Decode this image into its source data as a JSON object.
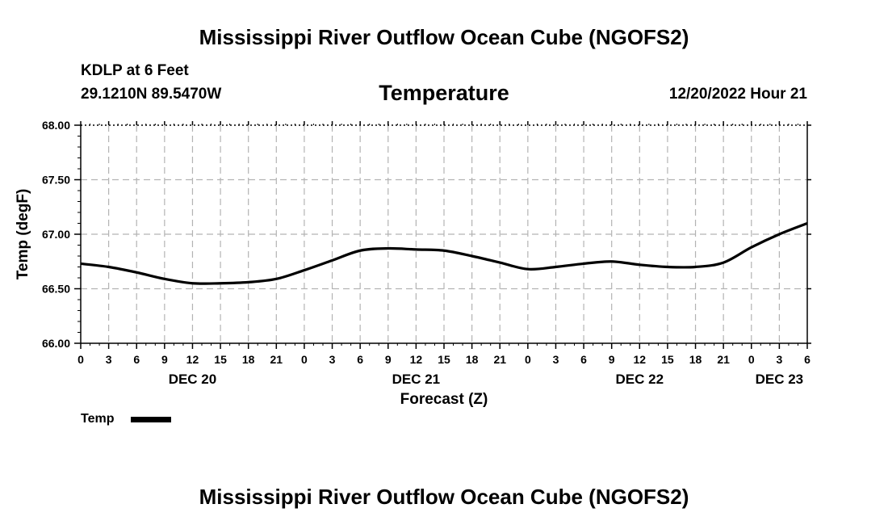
{
  "page": {
    "title": "Mississippi River Outflow Ocean Cube (NGOFS2)",
    "footer_title": "Mississippi River Outflow Ocean Cube (NGOFS2)"
  },
  "station": {
    "name": "KDLP at 6 Feet",
    "coords": "29.1210N  89.5470W"
  },
  "chart_data": {
    "type": "line",
    "title": "Temperature",
    "datetime": "12/20/2022 Hour 21",
    "xlabel": "Forecast (Z)",
    "ylabel": "Temp (degF)",
    "xlim": [
      0,
      78
    ],
    "ylim": [
      66.0,
      68.0
    ],
    "y_ticks": [
      66.0,
      66.5,
      67.0,
      67.5,
      68.0
    ],
    "y_tick_labels": [
      "66.00",
      "66.50",
      "67.00",
      "67.50",
      "68.00"
    ],
    "x_ticks": [
      0,
      3,
      6,
      9,
      12,
      15,
      18,
      21,
      24,
      27,
      30,
      33,
      36,
      39,
      42,
      45,
      48,
      51,
      54,
      57,
      60,
      63,
      66,
      69,
      72,
      75,
      78
    ],
    "x_tick_labels": [
      "0",
      "3",
      "6",
      "9",
      "12",
      "15",
      "18",
      "21",
      "0",
      "3",
      "6",
      "9",
      "12",
      "15",
      "18",
      "21",
      "0",
      "3",
      "6",
      "9",
      "12",
      "15",
      "18",
      "21",
      "0",
      "3",
      "6"
    ],
    "day_labels": [
      {
        "x": 12,
        "label": "DEC 20"
      },
      {
        "x": 36,
        "label": "DEC 21"
      },
      {
        "x": 60,
        "label": "DEC 22"
      },
      {
        "x": 75,
        "label": "DEC 23"
      }
    ],
    "grid": true,
    "legend_position": "bottom-left",
    "color": "#000000",
    "series": [
      {
        "name": "Temp",
        "x": [
          0,
          3,
          6,
          9,
          12,
          15,
          18,
          21,
          24,
          27,
          30,
          33,
          36,
          39,
          42,
          45,
          48,
          51,
          54,
          57,
          60,
          63,
          66,
          69,
          72,
          75,
          78
        ],
        "values": [
          66.73,
          66.7,
          66.65,
          66.59,
          66.55,
          66.55,
          66.56,
          66.59,
          66.67,
          66.76,
          66.85,
          66.87,
          66.86,
          66.85,
          66.8,
          66.74,
          66.68,
          66.7,
          66.73,
          66.75,
          66.72,
          66.7,
          66.7,
          66.74,
          66.88,
          67.0,
          67.1
        ]
      }
    ]
  }
}
